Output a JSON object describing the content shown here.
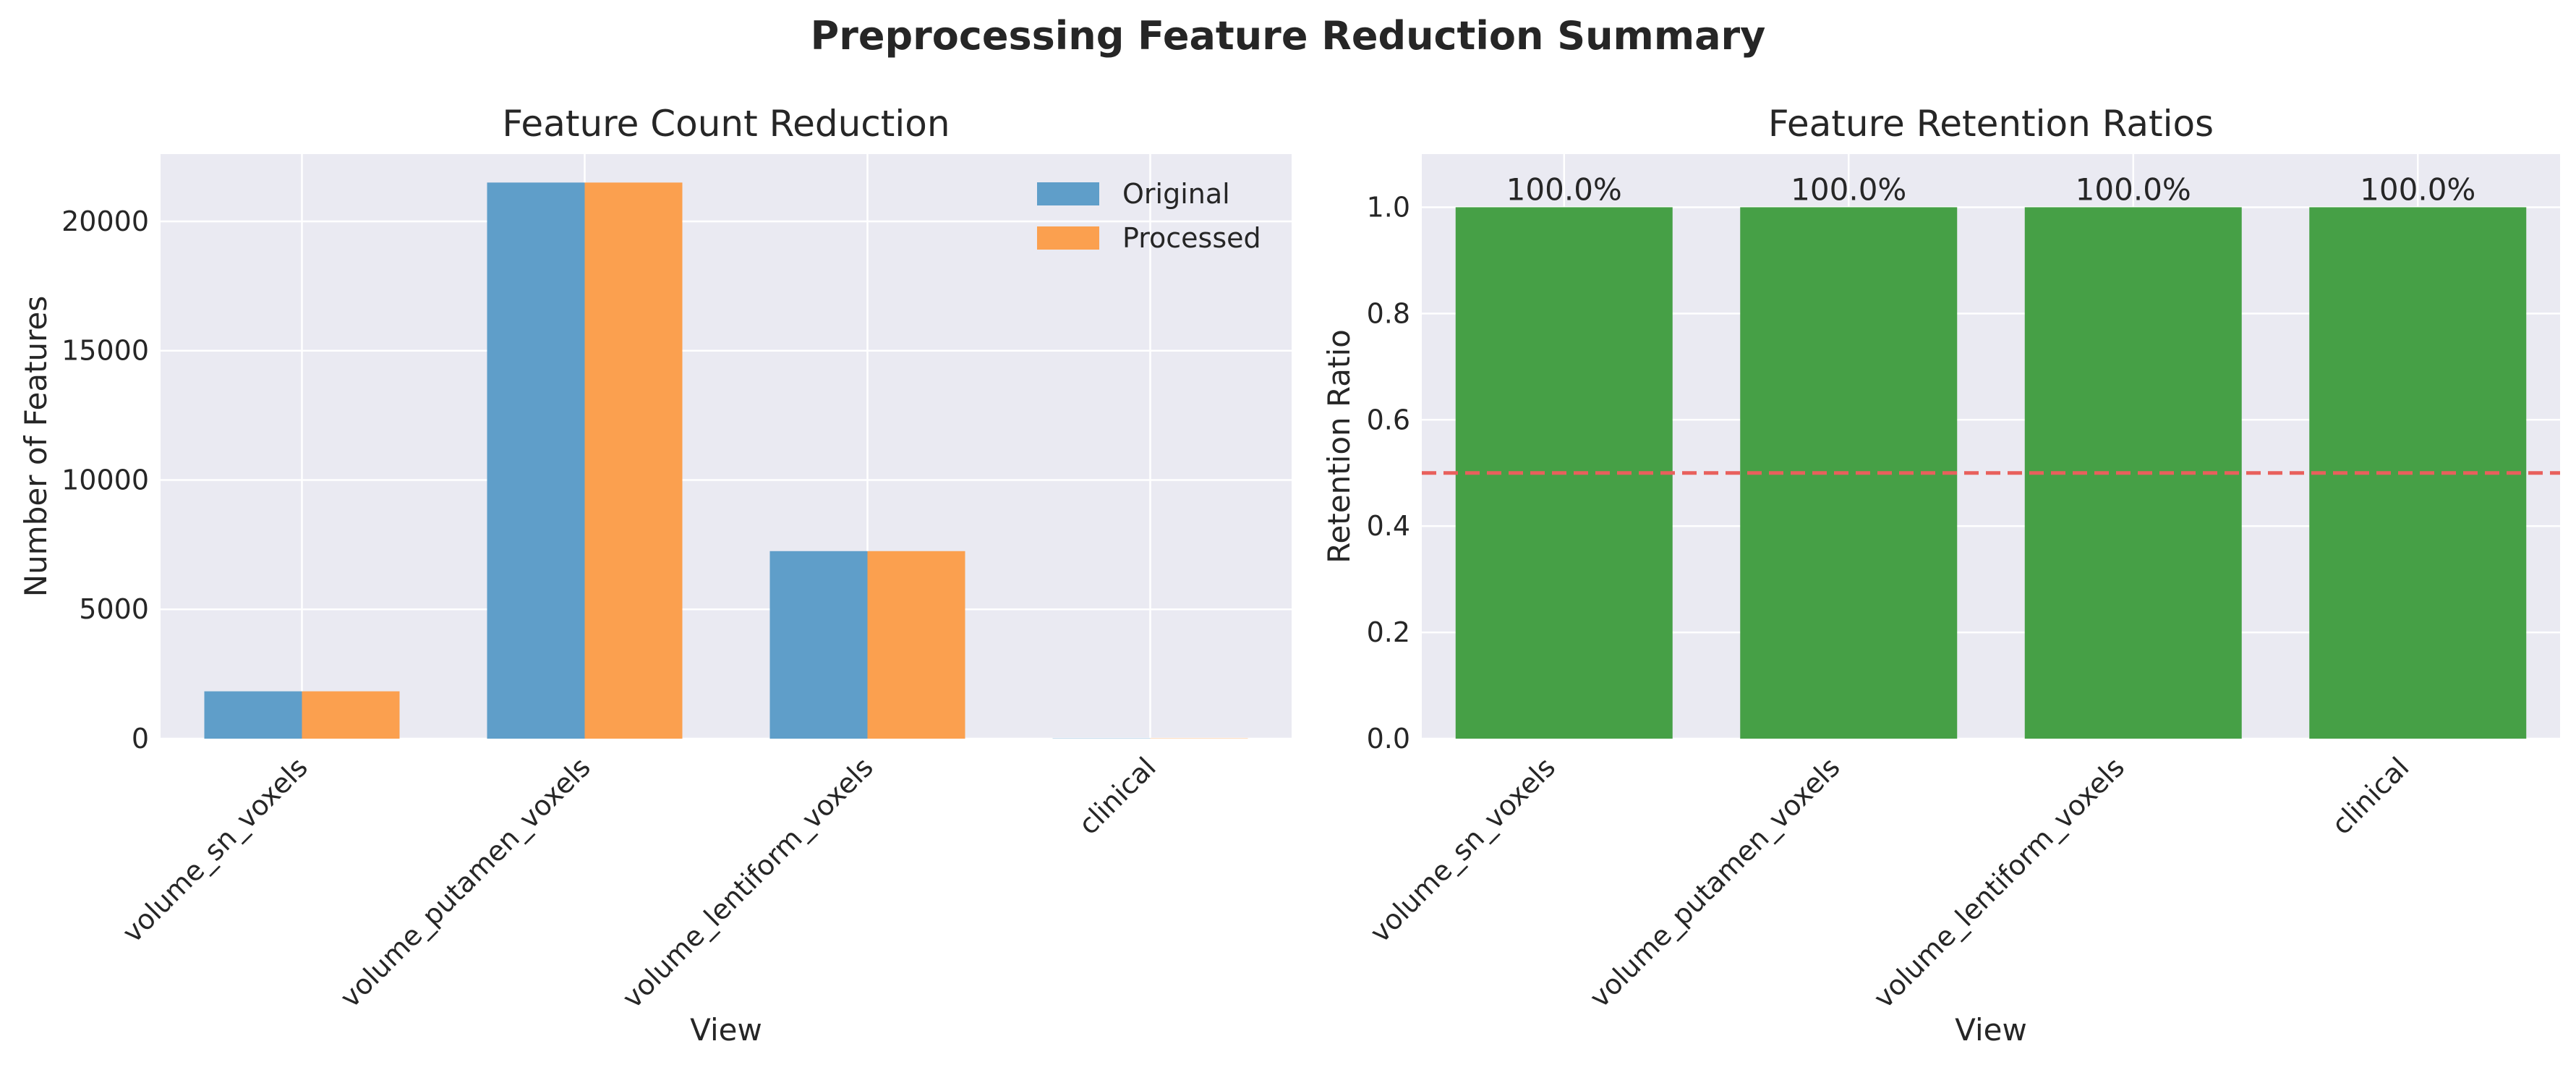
{
  "figure": {
    "suptitle": "Preprocessing Feature Reduction Summary"
  },
  "colors": {
    "original": "#5f9ec9",
    "processed": "#fba04f",
    "retention": "#46a046",
    "threshold": "#e8605c",
    "axes_bg": "#eaeaf2",
    "grid": "#ffffff"
  },
  "chart_data": [
    {
      "type": "bar",
      "title": "Feature Count Reduction",
      "xlabel": "View",
      "ylabel": "Number of Features",
      "categories": [
        "volume_sn_voxels",
        "volume_putamen_voxels",
        "volume_lentiform_voxels",
        "clinical"
      ],
      "series": [
        {
          "name": "Original",
          "values": [
            1830,
            21500,
            7250,
            10
          ]
        },
        {
          "name": "Processed",
          "values": [
            1830,
            21500,
            7250,
            10
          ]
        }
      ],
      "ylim": [
        0,
        22600
      ],
      "yticks": [
        0,
        5000,
        10000,
        15000,
        20000
      ],
      "legend": "top-right",
      "grid": true
    },
    {
      "type": "bar",
      "title": "Feature Retention Ratios",
      "xlabel": "View",
      "ylabel": "Retention Ratio",
      "categories": [
        "volume_sn_voxels",
        "volume_putamen_voxels",
        "volume_lentiform_voxels",
        "clinical"
      ],
      "values": [
        1.0,
        1.0,
        1.0,
        1.0
      ],
      "data_labels": [
        "100.0%",
        "100.0%",
        "100.0%",
        "100.0%"
      ],
      "reference_line": 0.5,
      "ylim": [
        0,
        1.1
      ],
      "yticks": [
        "0.0",
        "0.2",
        "0.4",
        "0.6",
        "0.8",
        "1.0"
      ],
      "grid": true
    }
  ]
}
